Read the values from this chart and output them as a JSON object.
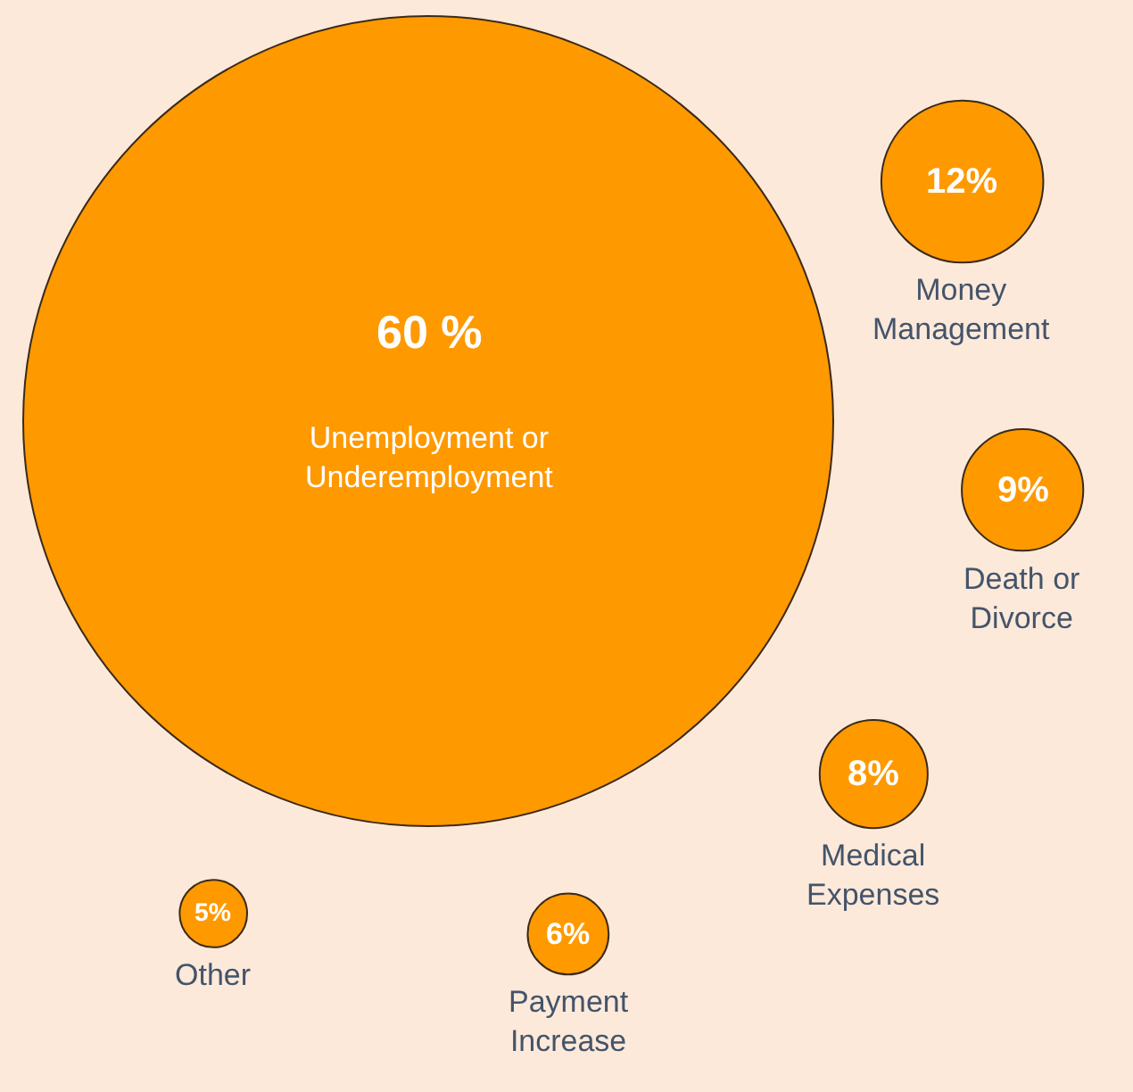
{
  "chart_data": {
    "type": "other",
    "categories": [
      "Unemployment or Underemployment",
      "Money Management",
      "Death or Divorce",
      "Medical Expenses",
      "Payment Increase",
      "Other"
    ],
    "values": [
      60,
      12,
      9,
      8,
      6,
      5
    ],
    "value_labels": [
      "60 %",
      "12%",
      "9%",
      "8%",
      "6%",
      "5%"
    ],
    "color": "#ff9900"
  }
}
